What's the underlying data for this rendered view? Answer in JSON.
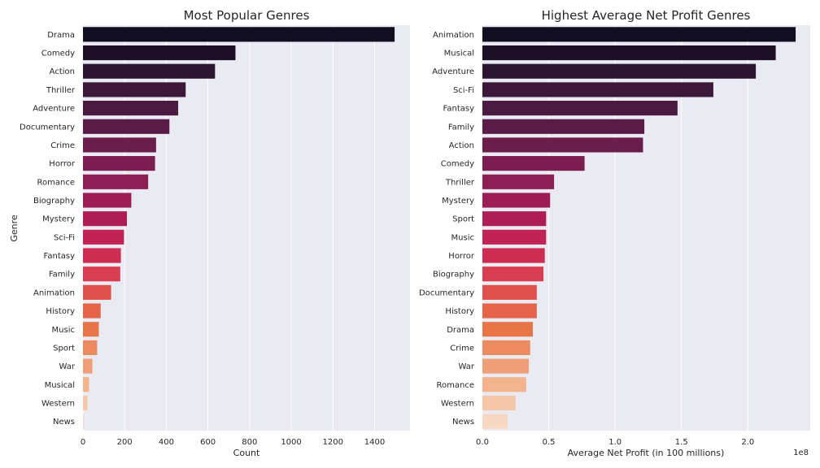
{
  "chart_data": [
    {
      "type": "bar",
      "orientation": "horizontal",
      "title": "Most Popular Genres",
      "xlabel": "Count",
      "ylabel": "Genre",
      "xlim": [
        0,
        1570
      ],
      "xticks": [
        "0",
        "200",
        "400",
        "600",
        "800",
        "1000",
        "1200",
        "1400"
      ],
      "xtick_values": [
        0,
        200,
        400,
        600,
        800,
        1000,
        1200,
        1400
      ],
      "grid": true,
      "categories": [
        "Drama",
        "Comedy",
        "Action",
        "Thriller",
        "Adventure",
        "Documentary",
        "Crime",
        "Horror",
        "Romance",
        "Biography",
        "Mystery",
        "Sci-Fi",
        "Fantasy",
        "Family",
        "Animation",
        "History",
        "Music",
        "Sport",
        "War",
        "Musical",
        "Western",
        "News"
      ],
      "values": [
        1496,
        732,
        634,
        493,
        457,
        415,
        351,
        346,
        313,
        232,
        211,
        197,
        182,
        179,
        135,
        85,
        76,
        68,
        45,
        29,
        22,
        5
      ]
    },
    {
      "type": "bar",
      "orientation": "horizontal",
      "title": "Highest Average Net Profit Genres",
      "xlabel": "Average Net Profit (in 100 millions)",
      "ylabel": "",
      "x_offset_label": "1e8",
      "xlim": [
        0,
        2.47
      ],
      "xticks": [
        "0.0",
        "0.5",
        "1.0",
        "1.5",
        "2.0"
      ],
      "xtick_values": [
        0,
        0.5,
        1.0,
        1.5,
        2.0
      ],
      "grid": true,
      "categories": [
        "Animation",
        "Musical",
        "Adventure",
        "Sci-Fi",
        "Fantasy",
        "Family",
        "Action",
        "Comedy",
        "Thriller",
        "Mystery",
        "Sport",
        "Music",
        "Horror",
        "Biography",
        "Documentary",
        "History",
        "Drama",
        "Crime",
        "War",
        "Romance",
        "Western",
        "News"
      ],
      "values": [
        2.36,
        2.21,
        2.06,
        1.74,
        1.47,
        1.22,
        1.21,
        0.77,
        0.54,
        0.51,
        0.48,
        0.48,
        0.47,
        0.46,
        0.41,
        0.41,
        0.38,
        0.36,
        0.35,
        0.33,
        0.25,
        0.19
      ]
    }
  ],
  "palette": [
    "#120e22",
    "#1e1127",
    "#2c1530",
    "#3b1839",
    "#4a1a40",
    "#5a1c47",
    "#6b1d4c",
    "#7b1d50",
    "#8c1e53",
    "#9c1d55",
    "#ae1e55",
    "#c02354",
    "#cd2c53",
    "#d93d51",
    "#e0504d",
    "#e46349",
    "#e87547",
    "#ec8b5f",
    "#ee9f77",
    "#f2b38d",
    "#f5c7a8",
    "#f7d9c3"
  ]
}
